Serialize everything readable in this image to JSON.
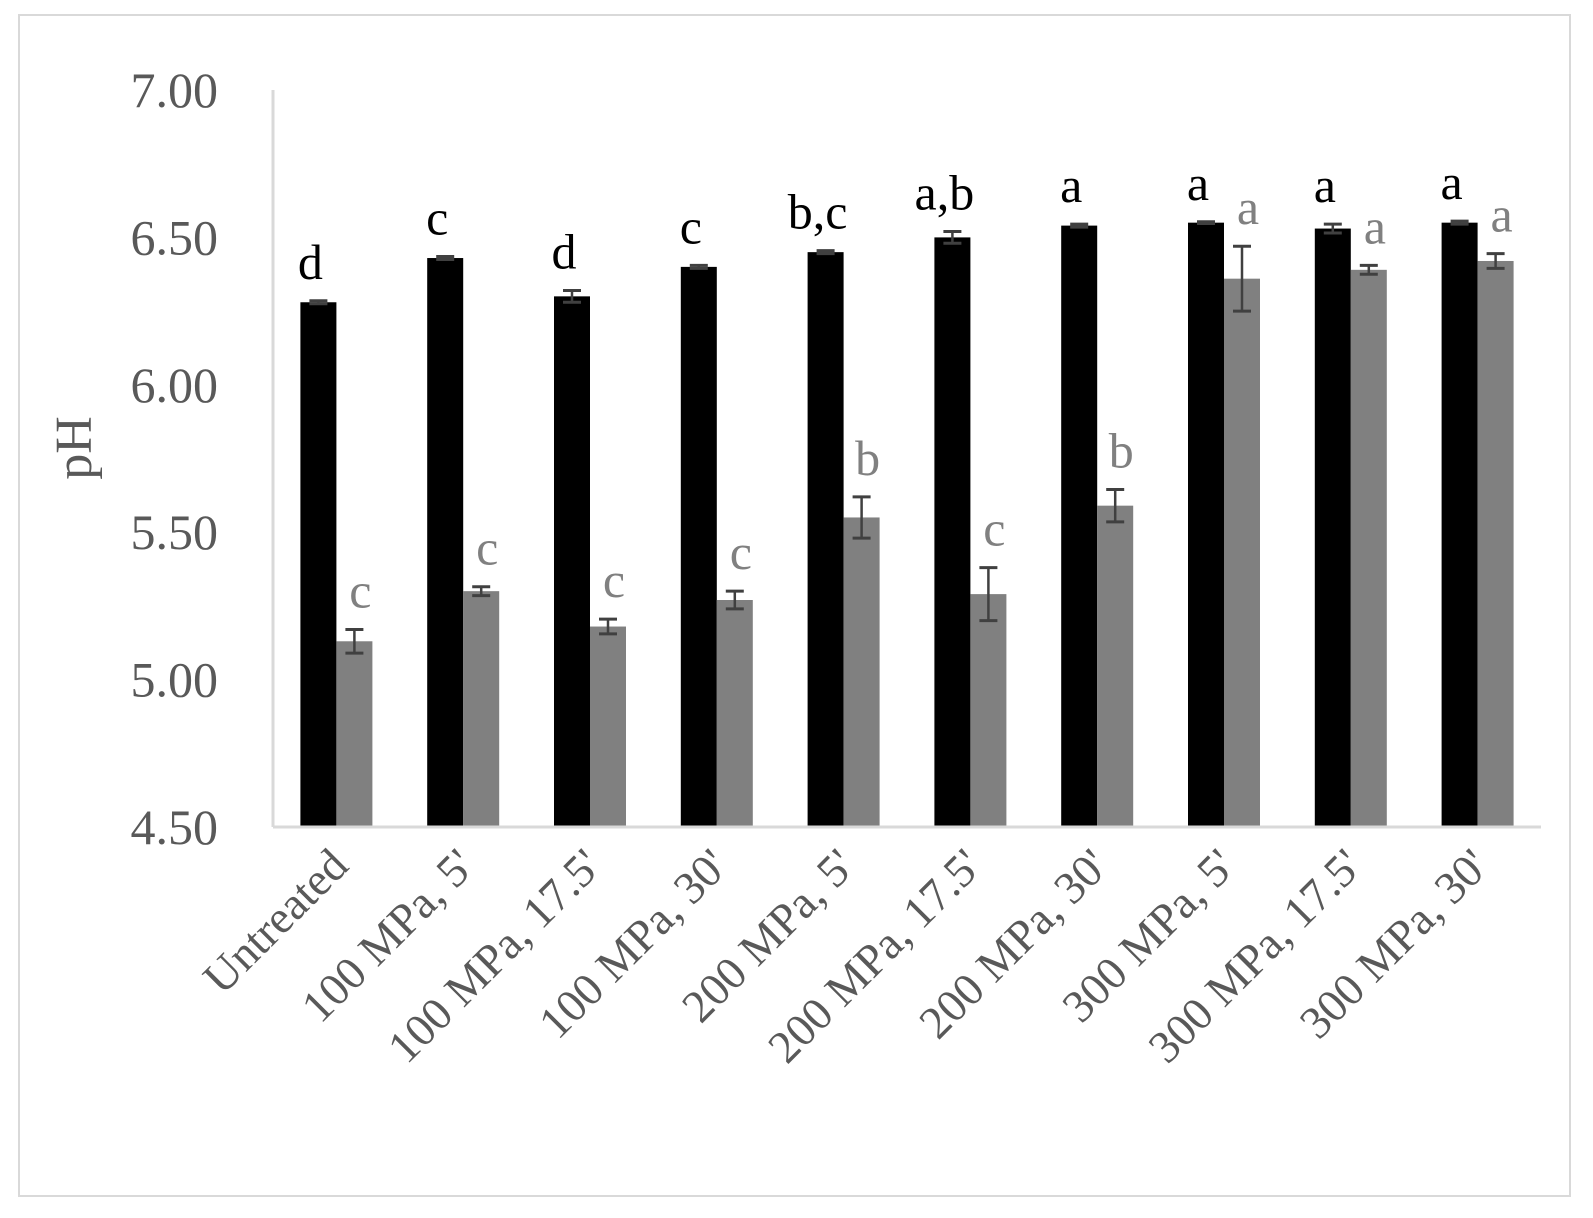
{
  "chart_data": {
    "type": "bar",
    "ylabel": "pH",
    "ylim": [
      4.5,
      7.0
    ],
    "yticks": [
      "4.50",
      "5.00",
      "5.50",
      "6.00",
      "6.50",
      "7.00"
    ],
    "grid": false,
    "legend": "none",
    "categories": [
      "Untreated",
      "100 MPa, 5'",
      "100 MPa, 17.5'",
      "100 MPa, 30'",
      "200 MPa, 5'",
      "200 MPa, 17.5'",
      "200 MPa, 30'",
      "300 MPa, 5'",
      "300 MPa, 17.5'",
      "300 MPa, 30'"
    ],
    "series": [
      {
        "color": "#000000",
        "label_color": "#000000",
        "values": [
          6.28,
          6.43,
          6.3,
          6.4,
          6.45,
          6.5,
          6.54,
          6.55,
          6.53,
          6.55
        ],
        "errors": [
          0.005,
          0.005,
          0.02,
          0.005,
          0.005,
          0.02,
          0.005,
          0.003,
          0.015,
          0.005
        ],
        "letters": [
          "d",
          "c",
          "d",
          "c",
          "b,c",
          "a,b",
          "a",
          "a",
          "a",
          "a"
        ]
      },
      {
        "color": "#808080",
        "label_color": "#808080",
        "values": [
          5.13,
          5.3,
          5.18,
          5.27,
          5.55,
          5.29,
          5.59,
          6.36,
          6.39,
          6.42
        ],
        "errors": [
          0.04,
          0.015,
          0.025,
          0.03,
          0.07,
          0.09,
          0.055,
          0.11,
          0.015,
          0.025
        ],
        "letters": [
          "c",
          "c",
          "c",
          "c",
          "b",
          "c",
          "b",
          "a",
          "a",
          "a"
        ]
      }
    ]
  }
}
